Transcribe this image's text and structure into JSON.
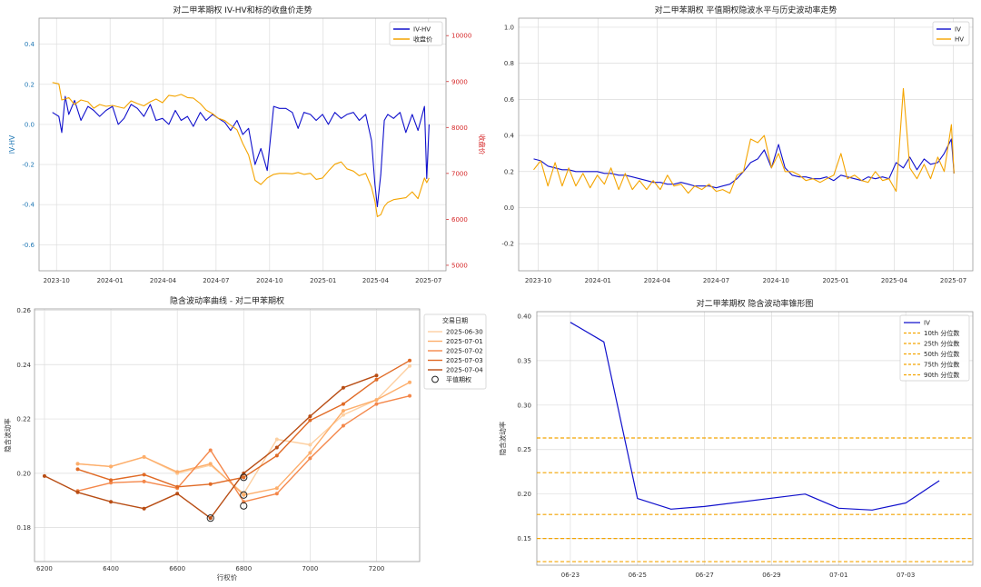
{
  "chart_data": [
    {
      "type": "line",
      "title": "对二甲苯期权 IV-HV和标的收盘价走势",
      "ylabel": "IV-HV",
      "y2label": "收盘价",
      "x_ticks": [
        "2023-10",
        "2024-01",
        "2024-04",
        "2024-07",
        "2024-10",
        "2025-01",
        "2025-04",
        "2025-07"
      ],
      "x_range": [
        "2023-09-01",
        "2025-07-31"
      ],
      "ylim": [
        -0.73,
        0.53
      ],
      "y_ticks": [
        "0.4",
        "0.2",
        "0.0",
        "-0.2",
        "-0.4",
        "-0.6"
      ],
      "y2lim": [
        4880,
        10380
      ],
      "y2_ticks": [
        "10000",
        "9000",
        "8000",
        "7000",
        "6000",
        "5000"
      ],
      "legend": "top-right",
      "series": [
        {
          "name": "IV-HV",
          "axis": "left",
          "color": "#1010cc",
          "x": [
            "2023-09-24",
            "2023-10-05",
            "2023-10-10",
            "2023-10-16",
            "2023-10-22",
            "2023-11-01",
            "2023-11-12",
            "2023-11-24",
            "2023-12-04",
            "2023-12-14",
            "2023-12-25",
            "2024-01-05",
            "2024-01-15",
            "2024-01-25",
            "2024-02-06",
            "2024-02-17",
            "2024-02-28",
            "2024-03-10",
            "2024-03-20",
            "2024-03-31",
            "2024-04-11",
            "2024-04-22",
            "2024-05-02",
            "2024-05-13",
            "2024-05-23",
            "2024-06-04",
            "2024-06-14",
            "2024-06-25",
            "2024-07-05",
            "2024-07-16",
            "2024-07-26",
            "2024-08-06",
            "2024-08-16",
            "2024-08-26",
            "2024-09-06",
            "2024-09-16",
            "2024-09-27",
            "2024-10-08",
            "2024-10-18",
            "2024-10-29",
            "2024-11-09",
            "2024-11-19",
            "2024-11-29",
            "2024-12-10",
            "2024-12-20",
            "2024-12-31",
            "2025-01-10",
            "2025-01-21",
            "2025-02-01",
            "2025-02-11",
            "2025-02-22",
            "2025-03-04",
            "2025-03-15",
            "2025-03-25",
            "2025-03-31",
            "2025-04-04",
            "2025-04-10",
            "2025-04-16",
            "2025-04-22",
            "2025-05-02",
            "2025-05-13",
            "2025-05-23",
            "2025-06-03",
            "2025-06-13",
            "2025-06-24",
            "2025-06-28",
            "2025-07-02"
          ],
          "y": [
            0.06,
            0.04,
            -0.04,
            0.14,
            0.05,
            0.12,
            0.02,
            0.09,
            0.07,
            0.04,
            0.07,
            0.09,
            0.0,
            0.03,
            0.1,
            0.08,
            0.04,
            0.1,
            0.02,
            0.03,
            0.0,
            0.07,
            0.02,
            0.04,
            -0.01,
            0.06,
            0.02,
            0.05,
            0.03,
            0.01,
            -0.03,
            0.02,
            -0.05,
            -0.02,
            -0.2,
            -0.12,
            -0.23,
            0.09,
            0.08,
            0.08,
            0.06,
            -0.02,
            0.06,
            0.05,
            0.02,
            0.05,
            0.0,
            0.06,
            0.03,
            0.05,
            0.06,
            0.02,
            0.05,
            -0.08,
            -0.3,
            -0.41,
            -0.25,
            0.02,
            0.05,
            0.03,
            0.06,
            -0.04,
            0.05,
            -0.03,
            0.09,
            -0.27,
            0.0
          ]
        },
        {
          "name": "收盘价",
          "axis": "right",
          "color": "#f4a400",
          "x": [
            "2023-09-24",
            "2023-10-05",
            "2023-10-10",
            "2023-10-16",
            "2023-10-22",
            "2023-11-01",
            "2023-11-12",
            "2023-11-24",
            "2023-12-04",
            "2023-12-14",
            "2023-12-25",
            "2024-01-05",
            "2024-01-15",
            "2024-01-25",
            "2024-02-06",
            "2024-02-17",
            "2024-02-28",
            "2024-03-10",
            "2024-03-20",
            "2024-03-31",
            "2024-04-11",
            "2024-04-22",
            "2024-05-02",
            "2024-05-13",
            "2024-05-23",
            "2024-06-04",
            "2024-06-14",
            "2024-06-25",
            "2024-07-05",
            "2024-07-16",
            "2024-07-26",
            "2024-08-06",
            "2024-08-16",
            "2024-08-26",
            "2024-09-06",
            "2024-09-16",
            "2024-09-27",
            "2024-10-08",
            "2024-10-18",
            "2024-10-29",
            "2024-11-09",
            "2024-11-19",
            "2024-11-29",
            "2024-12-10",
            "2024-12-20",
            "2024-12-31",
            "2025-01-10",
            "2025-01-21",
            "2025-02-01",
            "2025-02-11",
            "2025-02-22",
            "2025-03-04",
            "2025-03-15",
            "2025-03-25",
            "2025-03-31",
            "2025-04-04",
            "2025-04-10",
            "2025-04-16",
            "2025-04-22",
            "2025-05-02",
            "2025-05-13",
            "2025-05-23",
            "2025-06-03",
            "2025-06-13",
            "2025-06-24",
            "2025-06-28",
            "2025-07-02"
          ],
          "y": [
            8980,
            8950,
            8600,
            8620,
            8650,
            8500,
            8600,
            8560,
            8420,
            8500,
            8460,
            8480,
            8450,
            8420,
            8580,
            8520,
            8470,
            8560,
            8620,
            8540,
            8700,
            8680,
            8720,
            8650,
            8640,
            8520,
            8380,
            8300,
            8200,
            8150,
            8050,
            7950,
            7650,
            7400,
            6850,
            6760,
            6900,
            6980,
            7000,
            7000,
            6990,
            7020,
            6980,
            7000,
            6870,
            6900,
            7050,
            7200,
            7250,
            7100,
            7050,
            6950,
            7000,
            6700,
            6400,
            6060,
            6100,
            6280,
            6370,
            6430,
            6450,
            6470,
            6600,
            6450,
            6900,
            6800,
            6900
          ]
        }
      ]
    },
    {
      "type": "line",
      "title": "对二甲苯期权 平值期权隐波水平与历史波动率走势",
      "x_ticks": [
        "2023-10",
        "2024-01",
        "2024-04",
        "2024-07",
        "2024-10",
        "2025-01",
        "2025-04",
        "2025-07"
      ],
      "x_range": [
        "2023-09-01",
        "2025-07-31"
      ],
      "ylim": [
        -0.35,
        1.05
      ],
      "y_ticks": [
        "1.0",
        "0.8",
        "0.6",
        "0.4",
        "0.2",
        "0.0",
        "-0.2"
      ],
      "legend": "top-right",
      "series": [
        {
          "name": "IV",
          "color": "#1010cc",
          "x": [
            "2023-09-24",
            "2023-10-05",
            "2023-10-16",
            "2023-10-27",
            "2023-11-07",
            "2023-11-17",
            "2023-11-28",
            "2023-12-09",
            "2023-12-20",
            "2023-12-31",
            "2024-01-11",
            "2024-01-21",
            "2024-02-02",
            "2024-02-12",
            "2024-02-23",
            "2024-03-05",
            "2024-03-16",
            "2024-03-26",
            "2024-04-06",
            "2024-04-17",
            "2024-04-27",
            "2024-05-08",
            "2024-05-19",
            "2024-05-29",
            "2024-06-09",
            "2024-06-20",
            "2024-07-01",
            "2024-07-11",
            "2024-07-22",
            "2024-08-02",
            "2024-08-12",
            "2024-08-23",
            "2024-09-03",
            "2024-09-13",
            "2024-09-24",
            "2024-10-05",
            "2024-10-15",
            "2024-10-26",
            "2024-11-06",
            "2024-11-16",
            "2024-11-27",
            "2024-12-08",
            "2024-12-18",
            "2024-12-29",
            "2025-01-09",
            "2025-01-19",
            "2025-01-30",
            "2025-02-10",
            "2025-02-20",
            "2025-03-03",
            "2025-03-14",
            "2025-03-24",
            "2025-04-04",
            "2025-04-15",
            "2025-04-25",
            "2025-05-06",
            "2025-05-17",
            "2025-05-27",
            "2025-06-07",
            "2025-06-17",
            "2025-06-28",
            "2025-07-02"
          ],
          "y": [
            0.27,
            0.26,
            0.23,
            0.22,
            0.21,
            0.21,
            0.2,
            0.2,
            0.2,
            0.2,
            0.19,
            0.19,
            0.18,
            0.18,
            0.17,
            0.16,
            0.15,
            0.14,
            0.14,
            0.13,
            0.13,
            0.14,
            0.13,
            0.12,
            0.12,
            0.12,
            0.11,
            0.12,
            0.13,
            0.16,
            0.2,
            0.25,
            0.27,
            0.32,
            0.22,
            0.35,
            0.22,
            0.18,
            0.17,
            0.17,
            0.16,
            0.16,
            0.17,
            0.15,
            0.18,
            0.17,
            0.16,
            0.15,
            0.17,
            0.16,
            0.17,
            0.16,
            0.25,
            0.22,
            0.28,
            0.21,
            0.27,
            0.24,
            0.25,
            0.3,
            0.38,
            0.19
          ]
        },
        {
          "name": "HV",
          "color": "#f4a400",
          "x": [
            "2023-09-24",
            "2023-10-05",
            "2023-10-16",
            "2023-10-27",
            "2023-11-07",
            "2023-11-17",
            "2023-11-28",
            "2023-12-09",
            "2023-12-20",
            "2023-12-31",
            "2024-01-11",
            "2024-01-21",
            "2024-02-02",
            "2024-02-12",
            "2024-02-23",
            "2024-03-05",
            "2024-03-16",
            "2024-03-26",
            "2024-04-06",
            "2024-04-17",
            "2024-04-27",
            "2024-05-08",
            "2024-05-19",
            "2024-05-29",
            "2024-06-09",
            "2024-06-20",
            "2024-07-01",
            "2024-07-11",
            "2024-07-22",
            "2024-08-02",
            "2024-08-12",
            "2024-08-23",
            "2024-09-03",
            "2024-09-13",
            "2024-09-24",
            "2024-10-05",
            "2024-10-15",
            "2024-10-26",
            "2024-11-06",
            "2024-11-16",
            "2024-11-27",
            "2024-12-08",
            "2024-12-18",
            "2024-12-29",
            "2025-01-09",
            "2025-01-19",
            "2025-01-30",
            "2025-02-10",
            "2025-02-20",
            "2025-03-03",
            "2025-03-14",
            "2025-03-24",
            "2025-04-04",
            "2025-04-15",
            "2025-04-25",
            "2025-05-06",
            "2025-05-17",
            "2025-05-27",
            "2025-06-07",
            "2025-06-17",
            "2025-06-28",
            "2025-07-02"
          ],
          "y": [
            0.21,
            0.26,
            0.12,
            0.25,
            0.12,
            0.22,
            0.12,
            0.19,
            0.11,
            0.18,
            0.13,
            0.22,
            0.1,
            0.19,
            0.1,
            0.15,
            0.1,
            0.15,
            0.1,
            0.18,
            0.12,
            0.13,
            0.08,
            0.12,
            0.1,
            0.13,
            0.09,
            0.1,
            0.08,
            0.18,
            0.2,
            0.38,
            0.36,
            0.4,
            0.22,
            0.3,
            0.2,
            0.2,
            0.18,
            0.15,
            0.16,
            0.14,
            0.16,
            0.18,
            0.3,
            0.16,
            0.18,
            0.15,
            0.14,
            0.2,
            0.15,
            0.16,
            0.09,
            0.66,
            0.22,
            0.16,
            0.24,
            0.16,
            0.28,
            0.2,
            0.46,
            0.19
          ]
        }
      ]
    },
    {
      "type": "line",
      "title": "隐含波动率曲线 - 对二甲苯期权",
      "xlabel": "行权价",
      "ylabel": "隐含波动率",
      "xlim": [
        6170,
        7330
      ],
      "x_ticks": [
        "6200",
        "6400",
        "6600",
        "6800",
        "7000",
        "7200"
      ],
      "ylim": [
        0.1675,
        0.2605
      ],
      "y_ticks": [
        "0.26",
        "0.24",
        "0.22",
        "0.20",
        "0.18"
      ],
      "legend_title": "交易日期",
      "legend": "top-right",
      "atm_label": "平值期权",
      "atm_points": [
        [
          6700,
          0.1835
        ],
        [
          6800,
          0.192
        ],
        [
          6800,
          0.188
        ],
        [
          6800,
          0.1985
        ]
      ],
      "series": [
        {
          "name": "2025-06-30",
          "color": "#fdd0a2",
          "x": [
            6300,
            6400,
            6500,
            6600,
            6700,
            6800,
            6900,
            7000,
            7100,
            7200,
            7300
          ],
          "y": [
            0.2035,
            0.2025,
            0.206,
            0.2,
            0.203,
            0.1925,
            0.2125,
            0.2105,
            0.2215,
            0.227,
            0.2395
          ]
        },
        {
          "name": "2025-07-01",
          "color": "#fdae6b",
          "x": [
            6300,
            6400,
            6500,
            6600,
            6700,
            6800,
            6900,
            7000,
            7100,
            7200,
            7300
          ],
          "y": [
            0.2035,
            0.2025,
            0.206,
            0.2005,
            0.2035,
            0.192,
            0.1945,
            0.2075,
            0.223,
            0.227,
            0.2335
          ]
        },
        {
          "name": "2025-07-02",
          "color": "#f4874a",
          "x": [
            6300,
            6400,
            6500,
            6600,
            6700,
            6800,
            6900,
            7000,
            7100,
            7200,
            7300
          ],
          "y": [
            0.1935,
            0.1965,
            0.197,
            0.1945,
            0.2085,
            0.1895,
            0.1925,
            0.2055,
            0.2175,
            0.2255,
            0.2285
          ]
        },
        {
          "name": "2025-07-03",
          "color": "#e06a25",
          "x": [
            6300,
            6400,
            6500,
            6600,
            6700,
            6800,
            6900,
            7000,
            7100,
            7200,
            7300
          ],
          "y": [
            0.2015,
            0.1975,
            0.1995,
            0.195,
            0.196,
            0.1985,
            0.2065,
            0.2195,
            0.2255,
            0.2345,
            0.2415
          ]
        },
        {
          "name": "2025-07-04",
          "color": "#b84d14",
          "x": [
            6200,
            6300,
            6400,
            6500,
            6600,
            6700,
            6800,
            6900,
            7000,
            7100,
            7200
          ],
          "y": [
            0.199,
            0.193,
            0.1895,
            0.187,
            0.1925,
            0.1835,
            0.2,
            0.2095,
            0.221,
            0.2315,
            0.236
          ]
        }
      ]
    },
    {
      "type": "line",
      "title": "对二甲苯期权 隐含波动率锥形图",
      "ylabel": "隐含波动率",
      "x_ticks": [
        "06-23",
        "06-25",
        "06-27",
        "06-29",
        "07-01",
        "07-03"
      ],
      "x_range": [
        "2025-06-22",
        "2025-07-05"
      ],
      "ylim": [
        0.12,
        0.405
      ],
      "y_ticks": [
        "0.40",
        "0.35",
        "0.30",
        "0.25",
        "0.20",
        "0.15"
      ],
      "legend": "top-right",
      "series": [
        {
          "name": "IV",
          "color": "#1010cc",
          "x": [
            "2025-06-23",
            "2025-06-24",
            "2025-06-25",
            "2025-06-26",
            "2025-06-27",
            "2025-06-30",
            "2025-07-01",
            "2025-07-02",
            "2025-07-03",
            "2025-07-04"
          ],
          "y": [
            0.393,
            0.371,
            0.195,
            0.183,
            0.186,
            0.2,
            0.184,
            0.182,
            0.19,
            0.215
          ]
        }
      ],
      "percentiles": [
        {
          "name": "10th 分位数",
          "value": 0.124,
          "color": "#f4a400"
        },
        {
          "name": "25th 分位数",
          "value": 0.15,
          "color": "#f4a400"
        },
        {
          "name": "50th 分位数",
          "value": 0.177,
          "color": "#f4a400"
        },
        {
          "name": "75th 分位数",
          "value": 0.224,
          "color": "#f4a400"
        },
        {
          "name": "90th 分位数",
          "value": 0.263,
          "color": "#f4a400"
        }
      ]
    }
  ]
}
